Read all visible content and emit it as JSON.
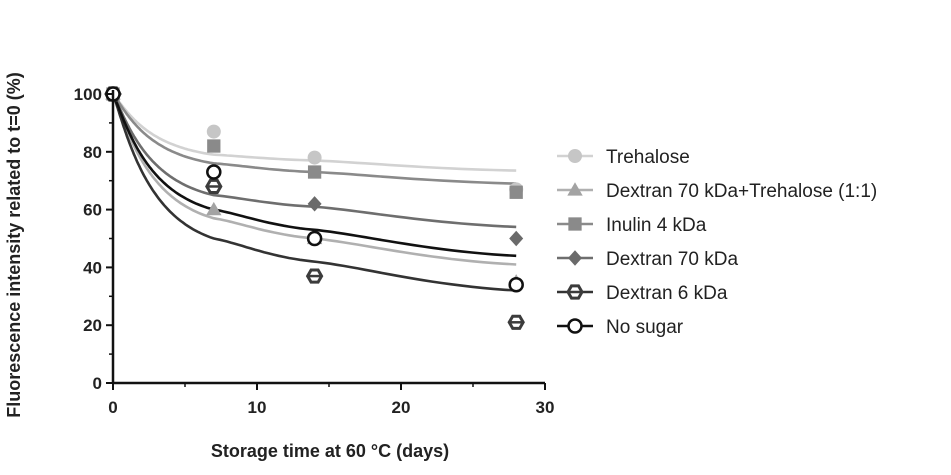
{
  "chart_data": {
    "type": "scatter",
    "xlabel": "Storage time at 60 °C (days)",
    "ylabel": "Fluorescence intensity related to t=0 (%)",
    "xlim": [
      0,
      30
    ],
    "ylim": [
      0,
      100
    ],
    "xticks": [
      0,
      10,
      20,
      30
    ],
    "yticks": [
      0,
      20,
      40,
      60,
      80,
      100
    ],
    "grid": false,
    "legend_position": "right",
    "series": [
      {
        "name": "Trehalose",
        "marker": "circle",
        "color": "#c6c6c6",
        "x": [
          0,
          7,
          14,
          28
        ],
        "y": [
          100,
          87,
          78,
          67
        ],
        "fit": {
          "x": [
            0,
            7,
            14,
            28
          ],
          "y": [
            100,
            79,
            77,
            73.5
          ]
        }
      },
      {
        "name": "Dextran 70 kDa+Trehalose (1:1)",
        "marker": "triangle",
        "color": "#a3a3a3",
        "x": [
          0,
          7,
          14,
          28
        ],
        "y": [
          100,
          60,
          50,
          35
        ],
        "fit": {
          "x": [
            0,
            7,
            14,
            28
          ],
          "y": [
            100,
            57,
            50,
            41
          ]
        }
      },
      {
        "name": "Inulin 4 kDa",
        "marker": "square",
        "color": "#8a8a8a",
        "x": [
          0,
          7,
          14,
          28
        ],
        "y": [
          100,
          82,
          73,
          66
        ],
        "fit": {
          "x": [
            0,
            7,
            14,
            28
          ],
          "y": [
            100,
            76,
            73,
            69
          ]
        }
      },
      {
        "name": "Dextran 70 kDa",
        "marker": "diamond",
        "color": "#6a6a6a",
        "x": [
          0,
          7,
          14,
          28
        ],
        "y": [
          100,
          68,
          62,
          50
        ],
        "fit": {
          "x": [
            0,
            7,
            14,
            28
          ],
          "y": [
            100,
            65,
            61,
            54
          ]
        }
      },
      {
        "name": "Dextran 6 kDa",
        "marker": "hexagon",
        "color": "#3c3c3c",
        "x": [
          0,
          7,
          14,
          28
        ],
        "y": [
          100,
          68,
          37,
          21
        ],
        "fit": {
          "x": [
            0,
            7,
            14,
            28
          ],
          "y": [
            100,
            50,
            42,
            32
          ]
        }
      },
      {
        "name": "No sugar",
        "marker": "open-circle",
        "color": "#111111",
        "x": [
          0,
          7,
          14,
          28
        ],
        "y": [
          100,
          73,
          50,
          34
        ],
        "fit": {
          "x": [
            0,
            7,
            14,
            28
          ],
          "y": [
            100,
            60,
            53,
            44
          ]
        }
      }
    ]
  }
}
